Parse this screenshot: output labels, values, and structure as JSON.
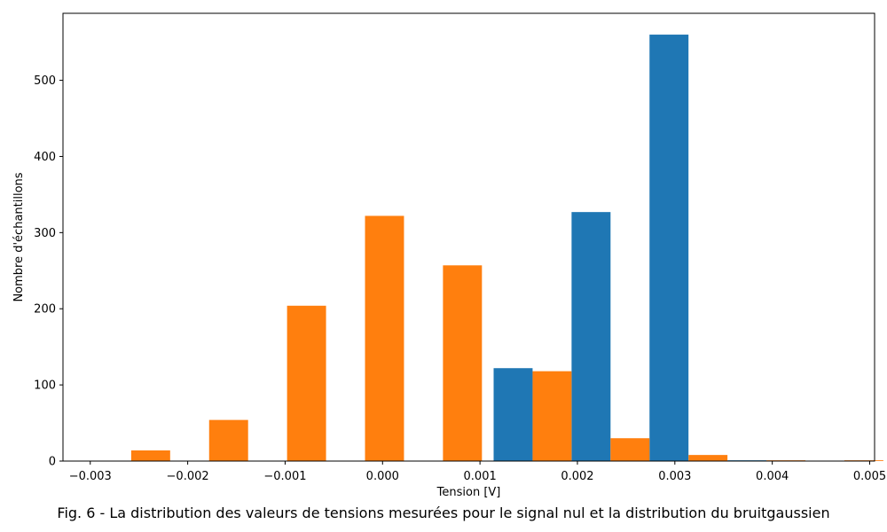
{
  "caption": "Fig. 6 - La distribution des valeurs de tensions mesurées pour le signal nul et la distribution du bruitgaussien",
  "chart_data": {
    "type": "bar",
    "title": "",
    "xlabel": "Tension [V]",
    "ylabel": "Nombre d'échantillons",
    "xlim": [
      -0.00328,
      0.00505
    ],
    "ylim": [
      0,
      588
    ],
    "xticks": [
      -0.003,
      -0.002,
      -0.001,
      0.0,
      0.001,
      0.002,
      0.003,
      0.004,
      0.005
    ],
    "xtick_labels": [
      "−0.003",
      "−0.002",
      "−0.001",
      "0.000",
      "0.001",
      "0.002",
      "0.003",
      "0.004",
      "0.005"
    ],
    "yticks": [
      0,
      100,
      200,
      300,
      400,
      500
    ],
    "ytick_labels": [
      "0",
      "100",
      "200",
      "300",
      "400",
      "500"
    ],
    "grid": false,
    "legend": null,
    "series": [
      {
        "color": "#1f77b4",
        "bars": [
          {
            "x0": 0.00114,
            "x1": 0.00154,
            "value": 122
          },
          {
            "x0": 0.00194,
            "x1": 0.00234,
            "value": 327
          },
          {
            "x0": 0.00274,
            "x1": 0.00314,
            "value": 560
          },
          {
            "x0": 0.00354,
            "x1": 0.00394,
            "value": 1
          }
        ]
      },
      {
        "color": "#ff7f0e",
        "bars": [
          {
            "x0": -0.00258,
            "x1": -0.00218,
            "value": 14
          },
          {
            "x0": -0.00178,
            "x1": -0.00138,
            "value": 54
          },
          {
            "x0": -0.00098,
            "x1": -0.00058,
            "value": 204
          },
          {
            "x0": -0.00018,
            "x1": 0.00022,
            "value": 322
          },
          {
            "x0": 0.00062,
            "x1": 0.00102,
            "value": 257
          },
          {
            "x0": 0.00154,
            "x1": 0.00194,
            "value": 118
          },
          {
            "x0": 0.00234,
            "x1": 0.00274,
            "value": 30
          },
          {
            "x0": 0.00314,
            "x1": 0.00354,
            "value": 8
          },
          {
            "x0": 0.00394,
            "x1": 0.00434,
            "value": 1
          },
          {
            "x0": 0.00474,
            "x1": 0.00514,
            "value": 1
          }
        ]
      }
    ]
  }
}
